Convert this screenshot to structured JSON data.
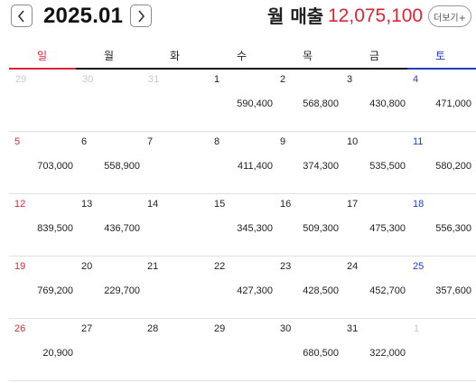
{
  "header": {
    "month": "2025.01",
    "sales_label": "월 매출",
    "sales_value": "12,075,100",
    "more_label": "더보기+",
    "accent_color": "#d9253a"
  },
  "weekdays": [
    "일",
    "월",
    "화",
    "수",
    "목",
    "금",
    "토"
  ],
  "weeks": [
    [
      {
        "day": "29",
        "amount": "",
        "type": "other"
      },
      {
        "day": "30",
        "amount": "",
        "type": "other"
      },
      {
        "day": "31",
        "amount": "",
        "type": "other"
      },
      {
        "day": "1",
        "amount": "590,400",
        "type": "normal"
      },
      {
        "day": "2",
        "amount": "568,800",
        "type": "normal"
      },
      {
        "day": "3",
        "amount": "430,800",
        "type": "normal"
      },
      {
        "day": "4",
        "amount": "471,000",
        "type": "sat"
      }
    ],
    [
      {
        "day": "5",
        "amount": "703,000",
        "type": "sun"
      },
      {
        "day": "6",
        "amount": "558,900",
        "type": "normal"
      },
      {
        "day": "7",
        "amount": "",
        "type": "normal"
      },
      {
        "day": "8",
        "amount": "411,400",
        "type": "normal"
      },
      {
        "day": "9",
        "amount": "374,300",
        "type": "normal"
      },
      {
        "day": "10",
        "amount": "535,500",
        "type": "normal"
      },
      {
        "day": "11",
        "amount": "580,200",
        "type": "sat"
      }
    ],
    [
      {
        "day": "12",
        "amount": "839,500",
        "type": "sun"
      },
      {
        "day": "13",
        "amount": "436,700",
        "type": "normal"
      },
      {
        "day": "14",
        "amount": "",
        "type": "normal"
      },
      {
        "day": "15",
        "amount": "345,300",
        "type": "normal"
      },
      {
        "day": "16",
        "amount": "509,300",
        "type": "normal"
      },
      {
        "day": "17",
        "amount": "475,300",
        "type": "normal"
      },
      {
        "day": "18",
        "amount": "556,300",
        "type": "sat"
      }
    ],
    [
      {
        "day": "19",
        "amount": "769,200",
        "type": "sun"
      },
      {
        "day": "20",
        "amount": "229,700",
        "type": "normal"
      },
      {
        "day": "21",
        "amount": "",
        "type": "normal"
      },
      {
        "day": "22",
        "amount": "427,300",
        "type": "normal"
      },
      {
        "day": "23",
        "amount": "428,500",
        "type": "normal"
      },
      {
        "day": "24",
        "amount": "452,700",
        "type": "normal"
      },
      {
        "day": "25",
        "amount": "357,600",
        "type": "sat"
      }
    ],
    [
      {
        "day": "26",
        "amount": "20,900",
        "type": "sun"
      },
      {
        "day": "27",
        "amount": "",
        "type": "normal"
      },
      {
        "day": "28",
        "amount": "",
        "type": "normal"
      },
      {
        "day": "29",
        "amount": "",
        "type": "normal"
      },
      {
        "day": "30",
        "amount": "680,500",
        "type": "normal"
      },
      {
        "day": "31",
        "amount": "322,000",
        "type": "normal"
      },
      {
        "day": "1",
        "amount": "",
        "type": "other"
      }
    ]
  ]
}
